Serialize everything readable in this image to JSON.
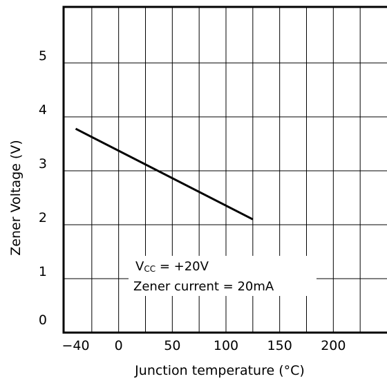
{
  "chart_data": {
    "type": "line",
    "xlabel": "Junction temperature (°C)",
    "ylabel": "Zener Voltage (V)",
    "xlim": [
      -50,
      250
    ],
    "ylim": [
      0,
      6
    ],
    "x_ticks": [
      -40,
      0,
      50,
      100,
      150,
      200
    ],
    "x_tick_labels": [
      "−40",
      "0",
      "50",
      "100",
      "150",
      "200"
    ],
    "x_grid": [
      -25,
      0,
      25,
      50,
      75,
      100,
      125,
      150,
      175,
      200,
      225
    ],
    "y_ticks": [
      0,
      1,
      2,
      3,
      4,
      5
    ],
    "y_tick_labels": [
      "0",
      "1",
      "2",
      "3",
      "4",
      "5"
    ],
    "grid": true,
    "series": [
      {
        "x": [
          -40,
          125
        ],
        "y": [
          3.78,
          2.1
        ]
      }
    ],
    "annotations": [
      "Vcc = +20V",
      "Zener current = 20mA"
    ],
    "colors": {
      "line": "#000000",
      "grid": "#000000",
      "background": "#ffffff"
    }
  }
}
